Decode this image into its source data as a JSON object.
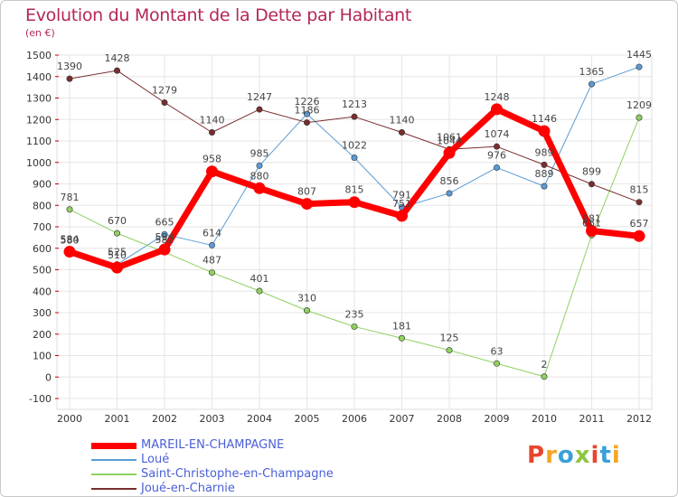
{
  "title": "Evolution du Montant de la Dette par Habitant",
  "subtitle": "(en €)",
  "logo": {
    "text": "Proxiti",
    "letters": [
      {
        "ch": "P",
        "color": "#e8452c"
      },
      {
        "ch": "r",
        "color": "#f5a623"
      },
      {
        "ch": "o",
        "color": "#3aa0d8"
      },
      {
        "ch": "x",
        "color": "#8cc63e"
      },
      {
        "ch": "i",
        "color": "#e8452c"
      },
      {
        "ch": "t",
        "color": "#3aa0d8"
      },
      {
        "ch": "i",
        "color": "#f5a623"
      }
    ]
  },
  "chart_data": {
    "type": "line",
    "title": "Evolution du Montant de la Dette par Habitant",
    "subtitle": "(en €)",
    "x": [
      "2000",
      "2001",
      "2002",
      "2003",
      "2004",
      "2005",
      "2006",
      "2007",
      "2008",
      "2009",
      "2010",
      "2011",
      "2012"
    ],
    "ylim": [
      -100,
      1500
    ],
    "yticks": [
      -100,
      0,
      100,
      200,
      300,
      400,
      500,
      600,
      700,
      800,
      900,
      1000,
      1100,
      1200,
      1300,
      1400,
      1500
    ],
    "grid": true,
    "legend_position": "bottom-left",
    "series": [
      {
        "name": "MAREIL-EN-CHAMPAGNE",
        "color": "#ff0000",
        "stroke_width": 7,
        "values": [
          584,
          510,
          594,
          958,
          880,
          807,
          815,
          751,
          1044,
          1248,
          1146,
          681,
          657
        ],
        "labels": [
          "584",
          "510",
          "594",
          "958",
          "880",
          "807",
          "815",
          "751",
          "1044",
          "1248",
          "1146",
          "681",
          "657"
        ]
      },
      {
        "name": "Loué",
        "color": "#5b9bd5",
        "stroke_width": 1,
        "values": [
          580,
          525,
          665,
          614,
          985,
          1226,
          1022,
          791,
          856,
          976,
          889,
          1365,
          1445
        ],
        "labels": [
          "580",
          "525",
          "665",
          "614",
          "985",
          "1226",
          "1022",
          "791",
          "856",
          "976",
          "889",
          "1365",
          "1445"
        ]
      },
      {
        "name": "Saint-Christophe-en-Champagne",
        "color": "#8fd160",
        "stroke_width": 1,
        "values": [
          781,
          670,
          582,
          487,
          401,
          310,
          235,
          181,
          125,
          63,
          2,
          661,
          1209
        ],
        "labels": [
          "781",
          "670",
          "582",
          "487",
          "401",
          "310",
          "235",
          "181",
          "125",
          "63",
          "2",
          "661",
          "1209"
        ]
      },
      {
        "name": "Joué-en-Charnie",
        "color": "#7a2e2e",
        "stroke_width": 1,
        "values": [
          1390,
          1428,
          1279,
          1140,
          1247,
          1186,
          1213,
          1140,
          1061,
          1074,
          989,
          899,
          815
        ],
        "labels": [
          "1390",
          "1428",
          "1279",
          "1140",
          "1247",
          "1186",
          "1213",
          "1140",
          "1061",
          "1074",
          "989",
          "899",
          "815"
        ]
      }
    ]
  }
}
